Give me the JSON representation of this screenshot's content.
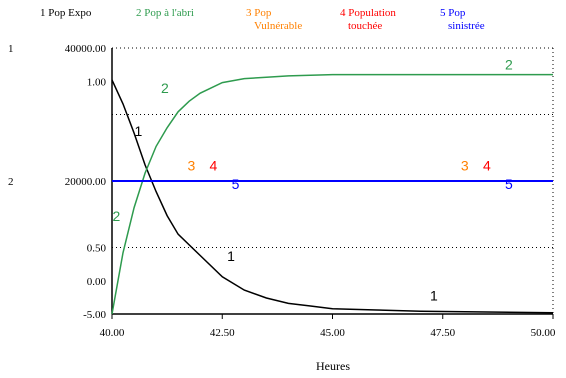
{
  "chart_data": {
    "type": "line",
    "xlabel": "Heures",
    "x_ticks": [
      "40.00",
      "42.50",
      "45.00",
      "47.50",
      "50.00"
    ],
    "xlim": [
      40,
      50
    ],
    "axes": [
      {
        "scale": "1",
        "ticks": [
          "40000.00",
          "1.00",
          "-5.00"
        ]
      },
      {
        "scale": "2",
        "ticks": [
          "20000.00",
          "0.50",
          "0.00"
        ]
      }
    ],
    "series": [
      {
        "id": "1",
        "name": "Pop Expo",
        "color": "#000000",
        "points": [
          [
            40.0,
            0.88
          ],
          [
            40.25,
            0.79
          ],
          [
            40.5,
            0.68
          ],
          [
            40.75,
            0.56
          ],
          [
            41.0,
            0.46
          ],
          [
            41.25,
            0.37
          ],
          [
            41.5,
            0.3
          ],
          [
            42.0,
            0.22
          ],
          [
            42.5,
            0.14
          ],
          [
            43.0,
            0.09
          ],
          [
            43.5,
            0.06
          ],
          [
            44.0,
            0.04
          ],
          [
            44.5,
            0.03
          ],
          [
            45.0,
            0.02
          ],
          [
            46.0,
            0.015
          ],
          [
            47.0,
            0.01
          ],
          [
            50.0,
            0.005
          ]
        ]
      },
      {
        "id": "2",
        "name": "Pop à l'abri",
        "color": "#2e9b4e",
        "points": [
          [
            40.0,
            0.0
          ],
          [
            40.25,
            0.23
          ],
          [
            40.5,
            0.4
          ],
          [
            40.75,
            0.53
          ],
          [
            41.0,
            0.63
          ],
          [
            41.25,
            0.7
          ],
          [
            41.5,
            0.76
          ],
          [
            41.75,
            0.8
          ],
          [
            42.0,
            0.83
          ],
          [
            42.5,
            0.87
          ],
          [
            43.0,
            0.885
          ],
          [
            43.5,
            0.89
          ],
          [
            44.0,
            0.895
          ],
          [
            45.0,
            0.9
          ],
          [
            50.0,
            0.9
          ]
        ]
      },
      {
        "id": "3",
        "name": "Pop Vulnérable",
        "color": "#ff8000",
        "points": [
          [
            40.0,
            0.5
          ],
          [
            50.0,
            0.5
          ]
        ]
      },
      {
        "id": "4",
        "name": "Population touchée",
        "color": "#ff0000",
        "points": [
          [
            40.0,
            0.5
          ],
          [
            50.0,
            0.5
          ]
        ]
      },
      {
        "id": "5",
        "name": "Pop sinistrée",
        "color": "#0000ff",
        "points": [
          [
            40.0,
            0.5
          ],
          [
            50.0,
            0.5
          ]
        ]
      }
    ],
    "legend": [
      {
        "num": "1",
        "lines": [
          "Pop Expo"
        ],
        "color": "#000000"
      },
      {
        "num": "2",
        "lines": [
          "Pop à l'abri"
        ],
        "color": "#2e9b4e"
      },
      {
        "num": "3",
        "lines": [
          "Pop",
          "Vulnérable"
        ],
        "color": "#ff8000"
      },
      {
        "num": "4",
        "lines": [
          "Population",
          "touchée"
        ],
        "color": "#ff0000"
      },
      {
        "num": "5",
        "lines": [
          "Pop",
          "sinistrée"
        ],
        "color": "#0000ff"
      }
    ],
    "line_markers": [
      {
        "text": "1",
        "x": 40.6,
        "y": 0.67
      },
      {
        "text": "1",
        "x": 42.7,
        "y": 0.2
      },
      {
        "text": "1",
        "x": 47.3,
        "y": 0.05
      },
      {
        "text": "2",
        "x": 41.2,
        "y": 0.83
      },
      {
        "text": "2",
        "x": 49.0,
        "y": 0.92
      },
      {
        "text": "2",
        "x": 40.1,
        "y": 0.35
      },
      {
        "text": "3",
        "x": 41.8,
        "y": 0.54
      },
      {
        "text": "4",
        "x": 42.3,
        "y": 0.54
      },
      {
        "text": "5",
        "x": 42.8,
        "y": 0.47
      },
      {
        "text": "3",
        "x": 48.0,
        "y": 0.54
      },
      {
        "text": "4",
        "x": 48.5,
        "y": 0.54
      },
      {
        "text": "5",
        "x": 49.0,
        "y": 0.47
      }
    ],
    "y_lim": [
      0,
      1
    ],
    "grid": "dotted horizontal at 0.25, 0.5, 0.75"
  }
}
